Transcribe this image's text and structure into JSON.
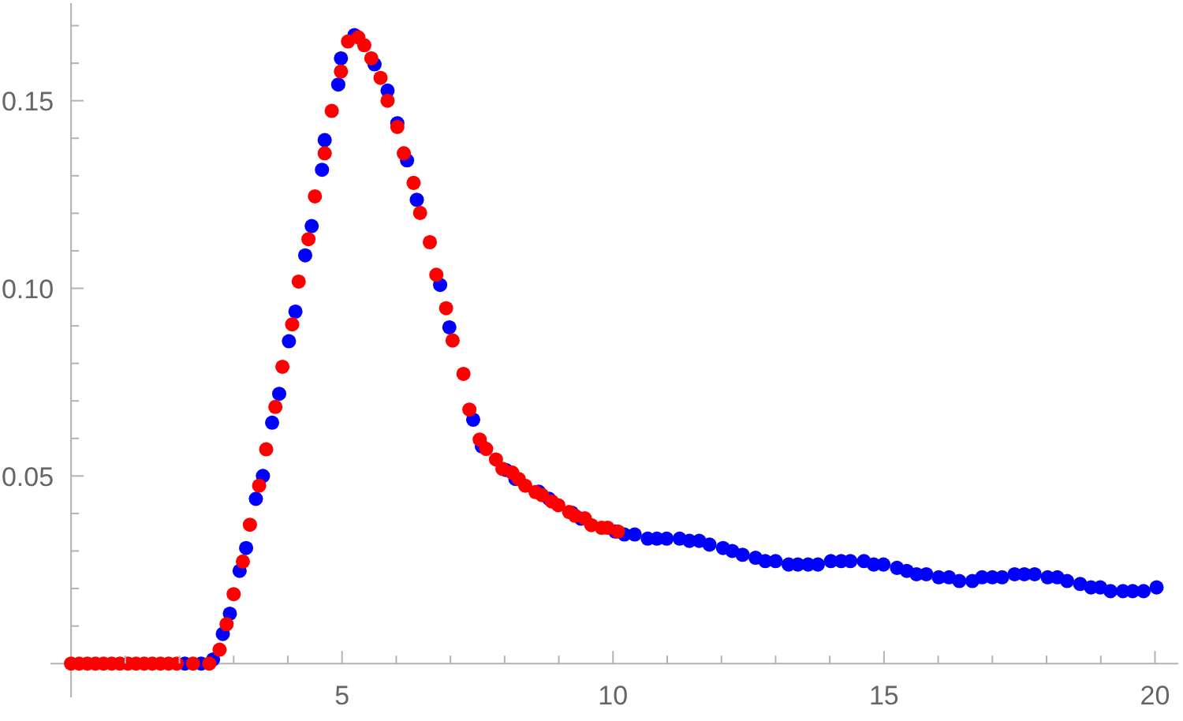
{
  "chart_data": {
    "type": "scatter",
    "marker": "circle",
    "xlim": [
      -0.38,
      20.43
    ],
    "ylim": [
      -0.009,
      0.176
    ],
    "xticks": [
      {
        "value": 1,
        "label": null
      },
      {
        "value": 2,
        "label": null
      },
      {
        "value": 3,
        "label": null
      },
      {
        "value": 4,
        "label": null
      },
      5,
      {
        "value": 6,
        "label": null
      },
      {
        "value": 7,
        "label": null
      },
      {
        "value": 8,
        "label": null
      },
      {
        "value": 9,
        "label": null
      },
      10,
      {
        "value": 11,
        "label": null
      },
      {
        "value": 12,
        "label": null
      },
      {
        "value": 13,
        "label": null
      },
      {
        "value": 14,
        "label": null
      },
      15,
      {
        "value": 16,
        "label": null
      },
      {
        "value": 17,
        "label": null
      },
      {
        "value": 18,
        "label": null
      },
      {
        "value": 19,
        "label": null
      },
      20
    ],
    "yticks": [
      {
        "value": 0.01,
        "label": null
      },
      {
        "value": 0.02,
        "label": null
      },
      {
        "value": 0.03,
        "label": null
      },
      {
        "value": 0.04,
        "label": null
      },
      0.05,
      {
        "value": 0.06,
        "label": null
      },
      {
        "value": 0.07,
        "label": null
      },
      {
        "value": 0.08,
        "label": null
      },
      {
        "value": 0.09,
        "label": null
      },
      {
        "value": 0.1,
        "label": "0.10"
      },
      {
        "value": 0.11,
        "label": null
      },
      {
        "value": 0.12,
        "label": null
      },
      {
        "value": 0.13,
        "label": null
      },
      {
        "value": 0.14,
        "label": null
      },
      0.15,
      {
        "value": 0.16,
        "label": null
      },
      {
        "value": 0.17,
        "label": null
      }
    ],
    "series": [
      {
        "color": "#0000ff",
        "x": [
          2.1,
          2.4,
          2.62,
          2.8,
          2.93,
          3.11,
          3.23,
          3.41,
          3.54,
          3.71,
          3.84,
          4.02,
          4.14,
          4.32,
          4.44,
          4.63,
          4.68,
          4.93,
          4.98,
          5.23,
          5.6,
          5.84,
          6.02,
          6.2,
          6.38,
          6.81,
          6.98,
          7.42,
          7.58,
          8.02,
          8.2,
          8.63,
          8.82,
          9.24,
          9.41,
          10.04,
          10.21,
          10.4,
          10.64,
          10.81,
          10.99,
          11.23,
          11.41,
          11.59,
          11.78,
          12.03,
          12.2,
          12.39,
          12.63,
          12.81,
          13.0,
          13.24,
          13.41,
          13.6,
          13.78,
          14.02,
          14.21,
          14.38,
          14.63,
          14.81,
          14.99,
          15.24,
          15.42,
          15.6,
          15.78,
          16.01,
          16.2,
          16.39,
          16.63,
          16.81,
          17.0,
          17.18,
          17.41,
          17.59,
          17.78,
          18.02,
          18.2,
          18.38,
          18.62,
          18.82,
          18.99,
          19.18,
          19.41,
          19.59,
          19.79,
          20.03
        ],
        "values": [
          0,
          0,
          0.0011,
          0.0079,
          0.0133,
          0.0247,
          0.0308,
          0.0439,
          0.05,
          0.0642,
          0.0719,
          0.0859,
          0.0938,
          0.1088,
          0.1166,
          0.1316,
          0.1395,
          0.1543,
          0.1613,
          0.1675,
          0.1597,
          0.1527,
          0.144,
          0.1341,
          0.1236,
          0.1009,
          0.0896,
          0.065,
          0.0579,
          0.0516,
          0.0492,
          0.0458,
          0.0439,
          0.0402,
          0.0386,
          0.0352,
          0.0344,
          0.0344,
          0.0333,
          0.0333,
          0.0333,
          0.0333,
          0.0327,
          0.0327,
          0.0317,
          0.0308,
          0.03,
          0.029,
          0.0282,
          0.0273,
          0.0273,
          0.0264,
          0.0264,
          0.0264,
          0.0264,
          0.0273,
          0.0273,
          0.0273,
          0.0273,
          0.0264,
          0.0264,
          0.0255,
          0.0247,
          0.0238,
          0.0238,
          0.023,
          0.023,
          0.022,
          0.022,
          0.023,
          0.023,
          0.023,
          0.0238,
          0.0238,
          0.0238,
          0.023,
          0.023,
          0.022,
          0.0212,
          0.0203,
          0.0203,
          0.0193,
          0.0193,
          0.0193,
          0.0193,
          0.0203
        ]
      },
      {
        "color": "#ff0000",
        "x": [
          0,
          0.15,
          0.3,
          0.45,
          0.6,
          0.75,
          0.9,
          1.05,
          1.2,
          1.35,
          1.5,
          1.65,
          1.8,
          1.95,
          2.25,
          2.55,
          2.74,
          2.87,
          3.0,
          3.17,
          3.3,
          3.47,
          3.6,
          3.77,
          3.9,
          4.08,
          4.2,
          4.38,
          4.5,
          4.68,
          4.81,
          4.98,
          5.11,
          5.3,
          5.41,
          5.54,
          5.71,
          5.84,
          6.02,
          6.14,
          6.32,
          6.44,
          6.62,
          6.74,
          6.92,
          7.04,
          7.24,
          7.35,
          7.54,
          7.66,
          7.84,
          7.96,
          8.14,
          8.26,
          8.38,
          8.57,
          8.69,
          8.87,
          8.99,
          9.19,
          9.3,
          9.48,
          9.6,
          9.79,
          9.9,
          10.09
        ],
        "values": [
          0,
          0,
          0,
          0,
          0,
          0,
          0,
          0,
          0,
          0,
          0,
          0,
          0,
          0,
          0,
          0,
          0.0037,
          0.0105,
          0.0185,
          0.0272,
          0.037,
          0.0474,
          0.0571,
          0.0684,
          0.0791,
          0.0904,
          0.1018,
          0.1131,
          0.1245,
          0.136,
          0.1473,
          0.1578,
          0.1658,
          0.1669,
          0.1648,
          0.1613,
          0.1561,
          0.15,
          0.143,
          0.136,
          0.1281,
          0.1201,
          0.1123,
          0.1036,
          0.0947,
          0.0861,
          0.0772,
          0.0677,
          0.0597,
          0.0572,
          0.0544,
          0.0519,
          0.0509,
          0.0492,
          0.0474,
          0.0457,
          0.0449,
          0.0432,
          0.0422,
          0.0404,
          0.0394,
          0.0387,
          0.0369,
          0.0362,
          0.0362,
          0.0352
        ]
      }
    ]
  }
}
